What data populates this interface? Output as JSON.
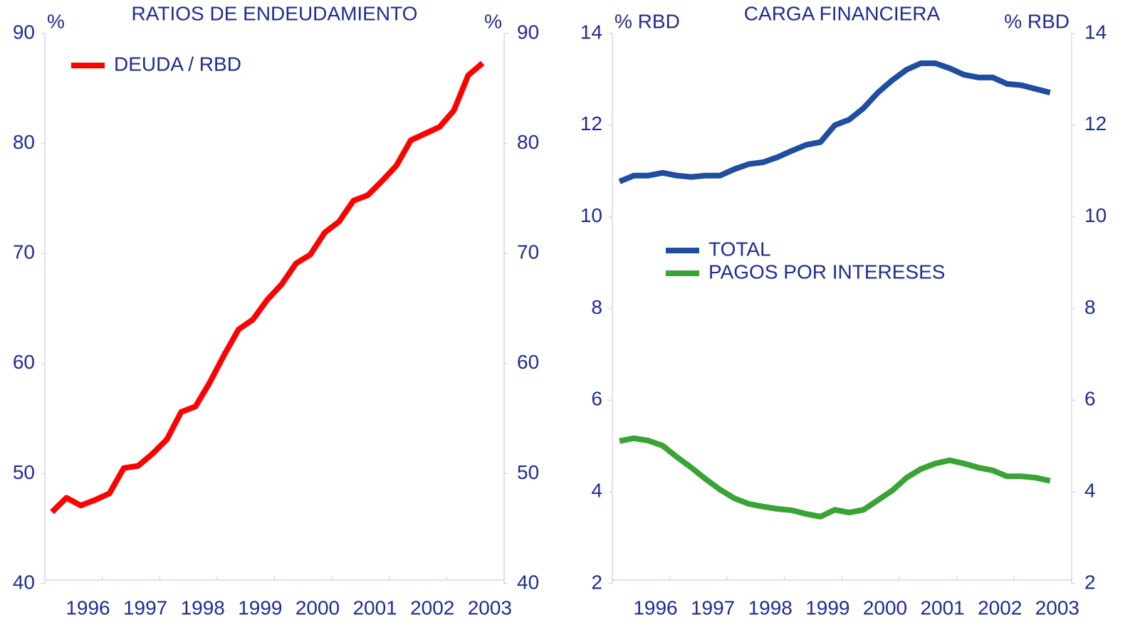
{
  "chart_data": [
    {
      "type": "line",
      "title": "RATIOS DE ENDEUDAMIENTO",
      "ylabel": "%",
      "y2label": "%",
      "categories": [
        null,
        null,
        "1996",
        null,
        null,
        null,
        "1997",
        null,
        null,
        null,
        "1998",
        null,
        null,
        null,
        "1999",
        null,
        null,
        null,
        "2000",
        null,
        null,
        null,
        "2001",
        null,
        null,
        null,
        "2002",
        null,
        null,
        null,
        "2003"
      ],
      "series": [
        {
          "name": "DEUDA / RBD",
          "color": "#ff0000",
          "values": [
            46.5,
            47.8,
            47.1,
            47.6,
            48.2,
            50.5,
            50.7,
            51.8,
            53.1,
            55.6,
            56.1,
            58.3,
            60.8,
            63.1,
            64.0,
            65.8,
            67.2,
            69.1,
            69.9,
            71.9,
            72.9,
            74.8,
            75.3,
            76.6,
            78.0,
            80.3,
            80.9,
            81.5,
            83.0,
            86.2,
            87.3
          ]
        }
      ],
      "ylim": [
        40,
        90
      ],
      "yticks": [
        40,
        50,
        60,
        70,
        80,
        90
      ],
      "y2lim": [
        40,
        90
      ],
      "y2ticks": [
        40,
        50,
        60,
        70,
        80,
        90
      ],
      "legend": "upper left"
    },
    {
      "type": "line",
      "title": "CARGA FINANCIERA",
      "ylabel": "% RBD",
      "y2label": "% RBD",
      "categories": [
        null,
        null,
        "1996",
        null,
        null,
        null,
        "1997",
        null,
        null,
        null,
        "1998",
        null,
        null,
        null,
        "1999",
        null,
        null,
        null,
        "2000",
        null,
        null,
        null,
        "2001",
        null,
        null,
        null,
        "2002",
        null,
        null,
        null,
        "2003"
      ],
      "series": [
        {
          "name": "TOTAL",
          "color": "#1f4e9f",
          "values": [
            10.77,
            10.9,
            10.9,
            10.96,
            10.9,
            10.87,
            10.9,
            10.9,
            11.04,
            11.15,
            11.19,
            11.3,
            11.44,
            11.57,
            11.63,
            12.0,
            12.12,
            12.37,
            12.71,
            12.98,
            13.21,
            13.35,
            13.35,
            13.24,
            13.1,
            13.04,
            13.04,
            12.9,
            12.87,
            12.79,
            12.71
          ]
        },
        {
          "name": "PAGOS POR INTERESES",
          "color": "#3aa335",
          "values": [
            5.11,
            5.17,
            5.12,
            5.01,
            4.76,
            4.53,
            4.28,
            4.05,
            3.86,
            3.74,
            3.68,
            3.63,
            3.6,
            3.52,
            3.46,
            3.61,
            3.55,
            3.61,
            3.82,
            4.03,
            4.31,
            4.5,
            4.62,
            4.69,
            4.62,
            4.53,
            4.47,
            4.34,
            4.34,
            4.31,
            4.24
          ]
        }
      ],
      "ylim": [
        2,
        14
      ],
      "yticks": [
        2,
        4,
        6,
        8,
        10,
        12,
        14
      ],
      "y2lim": [
        2,
        14
      ],
      "y2ticks": [
        2,
        4,
        6,
        8,
        10,
        12,
        14
      ],
      "legend": "center left"
    }
  ]
}
